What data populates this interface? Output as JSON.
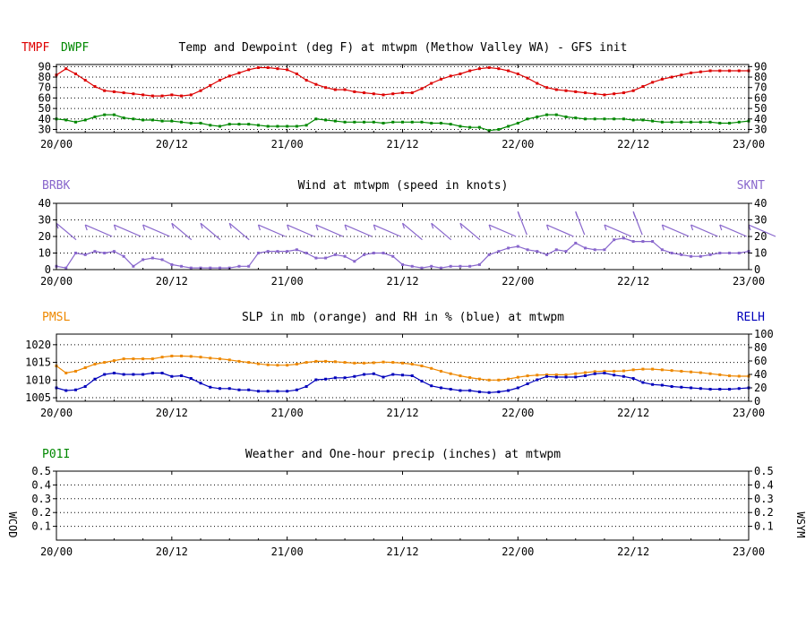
{
  "colors": {
    "tmpf": "#dd0000",
    "dwpf": "#008800",
    "wind": "#8866cc",
    "pmsl": "#ee8800",
    "relh": "#0000bb",
    "precip": "#008800",
    "wcod": "#004488",
    "text": "#000000"
  },
  "x_tick_labels": [
    "20/00",
    "20/12",
    "21/00",
    "21/12",
    "22/00",
    "22/12",
    "23/00"
  ],
  "chart_data": [
    {
      "id": "temp",
      "type": "line",
      "title": "Temp and Dewpoint (deg F) at mtwpm (Methow Valley WA) - GFS init",
      "left_labels": [
        "TMPF",
        "DWPF"
      ],
      "x_range_hours": [
        0,
        72
      ],
      "ylim": [
        27,
        92
      ],
      "yticks": [
        30,
        40,
        50,
        60,
        70,
        80,
        90
      ],
      "series": [
        {
          "name": "TMPF",
          "color": "#dd0000",
          "x": [
            0,
            1,
            2,
            3,
            4,
            5,
            6,
            7,
            8,
            9,
            10,
            11,
            12,
            13,
            14,
            15,
            16,
            17,
            18,
            19,
            20,
            21,
            22,
            23,
            24,
            25,
            26,
            27,
            28,
            29,
            30,
            31,
            32,
            33,
            34,
            35,
            36,
            37,
            38,
            39,
            40,
            41,
            42,
            43,
            44,
            45,
            46,
            47,
            48,
            49,
            50,
            51,
            52,
            53,
            54,
            55,
            56,
            57,
            58,
            59,
            60,
            61,
            62,
            63,
            64,
            65,
            66,
            67,
            68,
            69,
            70,
            71,
            72
          ],
          "values": [
            82,
            88,
            83,
            77,
            71,
            67,
            66,
            65,
            64,
            63,
            62,
            62,
            63,
            62,
            63,
            67,
            72,
            77,
            81,
            84,
            87,
            89,
            89,
            88,
            87,
            83,
            77,
            73,
            70,
            68,
            68,
            66,
            65,
            64,
            63,
            64,
            65,
            65,
            69,
            74,
            78,
            81,
            83,
            86,
            88,
            89,
            88,
            86,
            83,
            79,
            74,
            70,
            68,
            67,
            66,
            65,
            64,
            63,
            64,
            65,
            67,
            71,
            75,
            78,
            80,
            82,
            84,
            85,
            86,
            86,
            86,
            86,
            86
          ]
        },
        {
          "name": "DWPF",
          "color": "#008800",
          "x": [
            0,
            1,
            2,
            3,
            4,
            5,
            6,
            7,
            8,
            9,
            10,
            11,
            12,
            13,
            14,
            15,
            16,
            17,
            18,
            19,
            20,
            21,
            22,
            23,
            24,
            25,
            26,
            27,
            28,
            29,
            30,
            31,
            32,
            33,
            34,
            35,
            36,
            37,
            38,
            39,
            40,
            41,
            42,
            43,
            44,
            45,
            46,
            47,
            48,
            49,
            50,
            51,
            52,
            53,
            54,
            55,
            56,
            57,
            58,
            59,
            60,
            61,
            62,
            63,
            64,
            65,
            66,
            67,
            68,
            69,
            70,
            71,
            72
          ],
          "values": [
            40,
            39,
            37,
            39,
            42,
            44,
            44,
            41,
            40,
            39,
            39,
            38,
            38,
            37,
            36,
            36,
            34,
            33,
            35,
            35,
            35,
            34,
            33,
            33,
            33,
            33,
            34,
            40,
            39,
            38,
            37,
            37,
            37,
            37,
            36,
            37,
            37,
            37,
            37,
            36,
            36,
            35,
            33,
            32,
            32,
            29,
            30,
            33,
            36,
            40,
            42,
            44,
            44,
            42,
            41,
            40,
            40,
            40,
            40,
            40,
            39,
            39,
            38,
            37,
            37,
            37,
            37,
            37,
            37,
            36,
            36,
            37,
            38
          ]
        }
      ]
    },
    {
      "id": "wind",
      "type": "line",
      "title": "Wind at  mtwpm (speed in knots)",
      "left_label": "BRBK",
      "right_label": "SKNT",
      "x_range_hours": [
        0,
        72
      ],
      "ylim": [
        0,
        40
      ],
      "yticks": [
        0,
        10,
        20,
        30,
        40
      ],
      "barb_hours": [
        0,
        3,
        6,
        9,
        12,
        15,
        18,
        21,
        24,
        27,
        30,
        33,
        36,
        39,
        42,
        45,
        48,
        51,
        54,
        57,
        60,
        63,
        66,
        69,
        72
      ],
      "series": [
        {
          "name": "SKNT",
          "color": "#8866cc",
          "x": [
            0,
            1,
            2,
            3,
            4,
            5,
            6,
            7,
            8,
            9,
            10,
            11,
            12,
            13,
            14,
            15,
            16,
            17,
            18,
            19,
            20,
            21,
            22,
            23,
            24,
            25,
            26,
            27,
            28,
            29,
            30,
            31,
            32,
            33,
            34,
            35,
            36,
            37,
            38,
            39,
            40,
            41,
            42,
            43,
            44,
            45,
            46,
            47,
            48,
            49,
            50,
            51,
            52,
            53,
            54,
            55,
            56,
            57,
            58,
            59,
            60,
            61,
            62,
            63,
            64,
            65,
            66,
            67,
            68,
            69,
            70,
            71,
            72
          ],
          "values": [
            2,
            1,
            10,
            9,
            11,
            10,
            11,
            8,
            2,
            6,
            7,
            6,
            3,
            2,
            1,
            1,
            1,
            1,
            1,
            2,
            2,
            10,
            11,
            11,
            11,
            12,
            10,
            7,
            7,
            9,
            8,
            5,
            9,
            10,
            10,
            8,
            3,
            2,
            1,
            2,
            1,
            2,
            2,
            2,
            3,
            9,
            11,
            13,
            14,
            12,
            11,
            9,
            12,
            11,
            16,
            13,
            12,
            12,
            18,
            19,
            17,
            17,
            17,
            12,
            10,
            9,
            8,
            8,
            9,
            10,
            10,
            10,
            11
          ]
        }
      ]
    },
    {
      "id": "slp",
      "type": "line",
      "title": "SLP in mb (orange) and RH in % (blue) at  mtwpm",
      "left_label": "PMSL",
      "right_label": "RELH",
      "x_range_hours": [
        0,
        72
      ],
      "ylim_left": [
        1004,
        1023
      ],
      "yticks_left": [
        1005,
        1010,
        1015,
        1020
      ],
      "ylim_right": [
        0,
        100
      ],
      "yticks_right": [
        0,
        20,
        40,
        60,
        80,
        100
      ],
      "series": [
        {
          "name": "PMSL",
          "color": "#ee8800",
          "axis": "left",
          "x": [
            0,
            1,
            2,
            3,
            4,
            5,
            6,
            7,
            8,
            9,
            10,
            11,
            12,
            13,
            14,
            15,
            16,
            17,
            18,
            19,
            20,
            21,
            22,
            23,
            24,
            25,
            26,
            27,
            28,
            29,
            30,
            31,
            32,
            33,
            34,
            35,
            36,
            37,
            38,
            39,
            40,
            41,
            42,
            43,
            44,
            45,
            46,
            47,
            48,
            49,
            50,
            51,
            52,
            53,
            54,
            55,
            56,
            57,
            58,
            59,
            60,
            61,
            62,
            63,
            64,
            65,
            66,
            67,
            68,
            69,
            70,
            71,
            72
          ],
          "values": [
            1014,
            1012,
            1012.5,
            1013.5,
            1014.5,
            1015,
            1015.5,
            1016,
            1016,
            1016,
            1016,
            1016.5,
            1016.8,
            1016.8,
            1016.7,
            1016.5,
            1016.2,
            1016,
            1015.7,
            1015.3,
            1015,
            1014.6,
            1014.3,
            1014.2,
            1014.2,
            1014.5,
            1015,
            1015.3,
            1015.3,
            1015.2,
            1015,
            1014.8,
            1014.8,
            1014.9,
            1015.1,
            1015,
            1014.8,
            1014.5,
            1014,
            1013.3,
            1012.5,
            1011.8,
            1011.2,
            1010.7,
            1010.3,
            1010,
            1010,
            1010.3,
            1010.8,
            1011.2,
            1011.4,
            1011.5,
            1011.5,
            1011.5,
            1011.8,
            1012.1,
            1012.4,
            1012.5,
            1012.5,
            1012.6,
            1012.9,
            1013.1,
            1013.1,
            1012.9,
            1012.7,
            1012.5,
            1012.3,
            1012.1,
            1011.8,
            1011.5,
            1011.2,
            1011.1,
            1011.1
          ]
        },
        {
          "name": "RELH",
          "color": "#0000bb",
          "axis": "right",
          "x": [
            0,
            1,
            2,
            3,
            4,
            5,
            6,
            7,
            8,
            9,
            10,
            11,
            12,
            13,
            14,
            15,
            16,
            17,
            18,
            19,
            20,
            21,
            22,
            23,
            24,
            25,
            26,
            27,
            28,
            29,
            30,
            31,
            32,
            33,
            34,
            35,
            36,
            37,
            38,
            39,
            40,
            41,
            42,
            43,
            44,
            45,
            46,
            47,
            48,
            49,
            50,
            51,
            52,
            53,
            54,
            55,
            56,
            57,
            58,
            59,
            60,
            61,
            62,
            63,
            64,
            65,
            66,
            67,
            68,
            69,
            70,
            71,
            72
          ],
          "values": [
            20,
            16,
            17,
            22,
            33,
            40,
            42,
            40,
            40,
            40,
            42,
            42,
            37,
            38,
            34,
            27,
            21,
            19,
            19,
            17,
            17,
            15,
            15,
            15,
            15,
            17,
            22,
            32,
            33,
            35,
            35,
            37,
            40,
            41,
            36,
            40,
            39,
            38,
            30,
            23,
            20,
            18,
            16,
            16,
            14,
            13,
            14,
            16,
            20,
            26,
            32,
            37,
            36,
            36,
            36,
            38,
            41,
            42,
            39,
            37,
            34,
            28,
            25,
            24,
            22,
            21,
            20,
            19,
            18,
            18,
            18,
            19,
            20
          ]
        }
      ]
    },
    {
      "id": "precip",
      "type": "line",
      "title": "Weather and One-hour precip (inches) at  mtwpm",
      "left_label": "P01I",
      "side_label_left": "WCOD",
      "side_label_right": "WSYM",
      "x_range_hours": [
        0,
        72
      ],
      "ylim": [
        0,
        0.5
      ],
      "yticks": [
        0.1,
        0.2,
        0.3,
        0.4,
        0.5
      ],
      "ytick_labels": [
        "0.1",
        "0.2",
        "0.3",
        "0.4",
        "0.5"
      ],
      "series": []
    }
  ]
}
